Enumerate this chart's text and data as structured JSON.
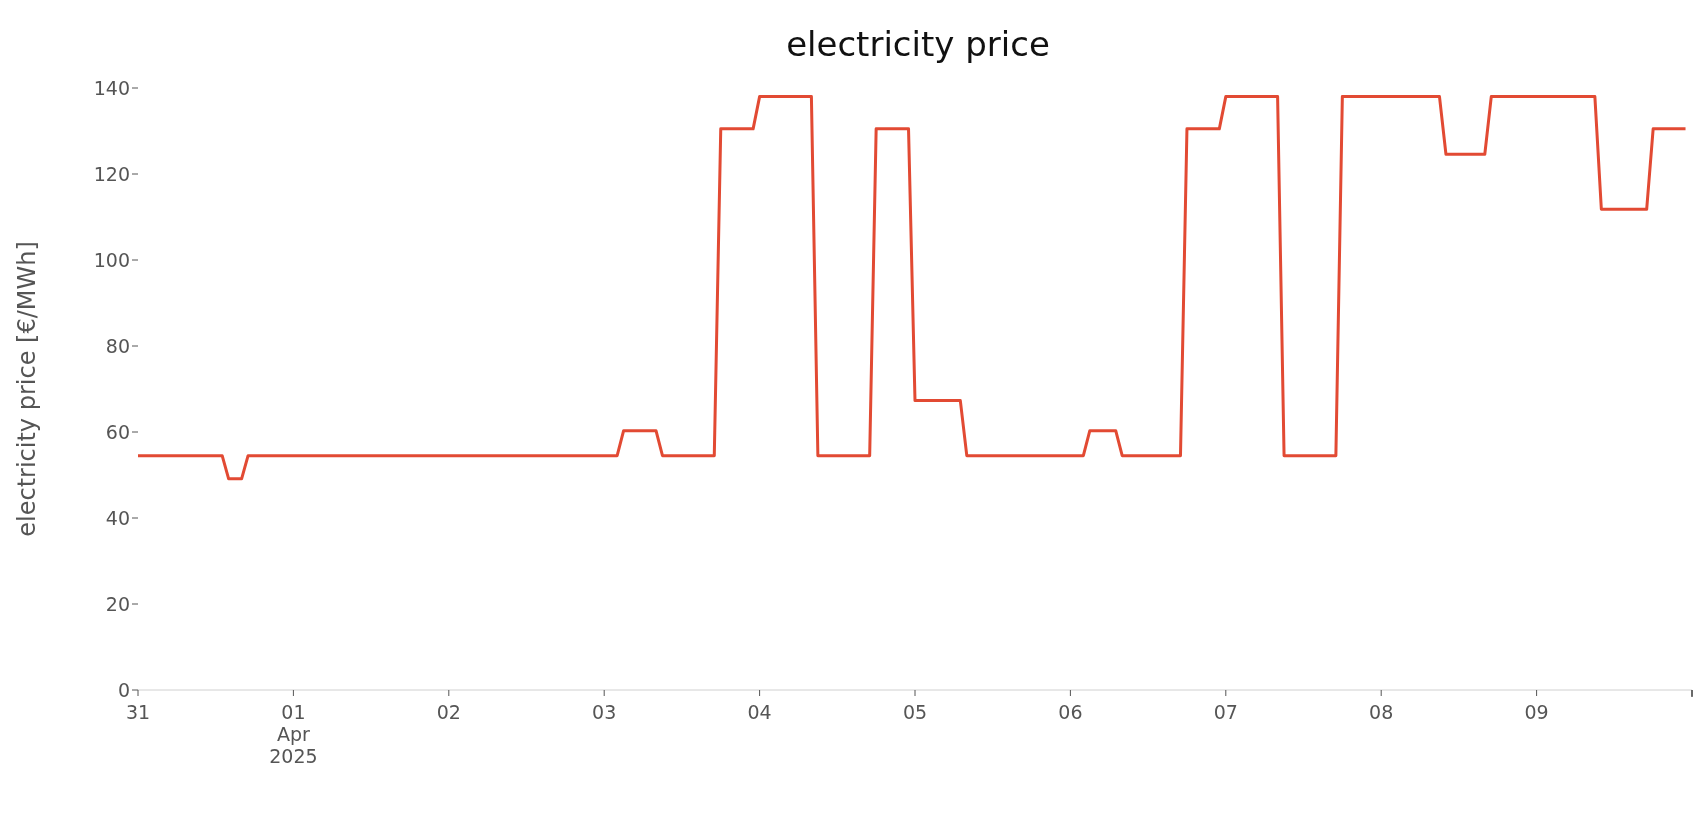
{
  "chart_data": {
    "type": "line",
    "title": "electricity price",
    "ylabel": "electricity price [€/MWh]",
    "color": "#e24a33",
    "x": [
      "2025-03-31T00:00",
      "2025-03-31T13:00",
      "2025-03-31T14:00",
      "2025-03-31T16:00",
      "2025-03-31T17:00",
      "2025-04-03T02:00",
      "2025-04-03T03:00",
      "2025-04-03T08:00",
      "2025-04-03T09:00",
      "2025-04-03T17:00",
      "2025-04-03T18:00",
      "2025-04-03T23:00",
      "2025-04-04T00:00",
      "2025-04-04T08:00",
      "2025-04-04T09:00",
      "2025-04-04T17:00",
      "2025-04-04T18:00",
      "2025-04-04T23:00",
      "2025-04-05T00:00",
      "2025-04-05T07:00",
      "2025-04-05T08:00",
      "2025-04-06T02:00",
      "2025-04-06T03:00",
      "2025-04-06T07:00",
      "2025-04-06T08:00",
      "2025-04-06T17:00",
      "2025-04-06T18:00",
      "2025-04-06T23:00",
      "2025-04-07T00:00",
      "2025-04-07T08:00",
      "2025-04-07T09:00",
      "2025-04-07T17:00",
      "2025-04-07T18:00",
      "2025-04-08T09:00",
      "2025-04-08T10:00",
      "2025-04-08T16:00",
      "2025-04-08T17:00",
      "2025-04-09T09:00",
      "2025-04-09T10:00",
      "2025-04-09T17:00",
      "2025-04-09T18:00",
      "2025-04-09T23:00"
    ],
    "values": [
      54.5,
      54.5,
      49.1,
      49.1,
      54.5,
      54.5,
      60.3,
      60.3,
      54.5,
      54.5,
      130.5,
      130.5,
      138,
      138,
      54.5,
      54.5,
      130.5,
      130.5,
      67.3,
      67.3,
      54.5,
      54.5,
      60.3,
      60.3,
      54.5,
      54.5,
      130.5,
      130.5,
      138,
      138,
      54.5,
      54.5,
      138,
      138,
      124.6,
      124.6,
      138,
      138,
      111.8,
      111.8,
      130.5,
      130.5
    ],
    "xticks": [
      {
        "value": "2025-03-31",
        "label": "31"
      },
      {
        "value": "2025-04-01",
        "label": "01\nApr\n2025"
      },
      {
        "value": "2025-04-02",
        "label": "02"
      },
      {
        "value": "2025-04-03",
        "label": "03"
      },
      {
        "value": "2025-04-04",
        "label": "04"
      },
      {
        "value": "2025-04-05",
        "label": "05"
      },
      {
        "value": "2025-04-06",
        "label": "06"
      },
      {
        "value": "2025-04-07",
        "label": "07"
      },
      {
        "value": "2025-04-08",
        "label": "08"
      },
      {
        "value": "2025-04-09",
        "label": "09"
      },
      {
        "value": "2025-04-10",
        "label": null
      }
    ],
    "xlim": [
      "2025-03-31",
      "2025-04-10"
    ],
    "ylim": [
      0,
      140
    ],
    "yticks": [
      0,
      20,
      40,
      60,
      80,
      100,
      120,
      140
    ]
  }
}
